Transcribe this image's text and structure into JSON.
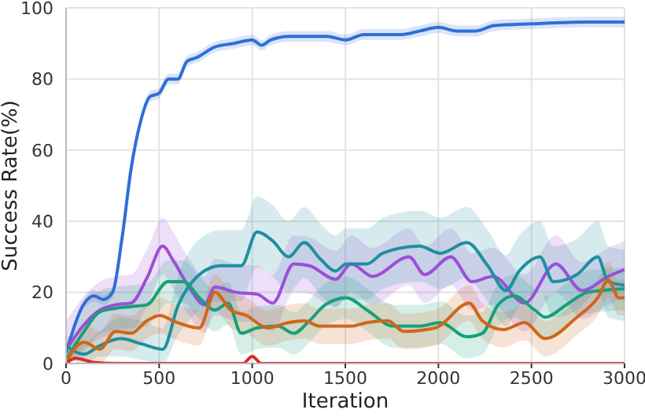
{
  "chart_data": {
    "type": "line",
    "xlabel": "Iteration",
    "ylabel": "Success Rate(%)",
    "xlim": [
      0,
      3000
    ],
    "xticks": [
      0,
      500,
      1000,
      1500,
      2000,
      2500,
      3000
    ],
    "ylim": [
      0,
      100
    ],
    "yticks": [
      0,
      20,
      40,
      60,
      80,
      100
    ],
    "grid": true,
    "legend": false,
    "marker": "none",
    "line_style": "solid",
    "series": [
      {
        "color": "#2f6fd6",
        "x": [
          0,
          100,
          150,
          200,
          250,
          300,
          350,
          400,
          450,
          500,
          550,
          600,
          650,
          700,
          800,
          900,
          1000,
          1050,
          1100,
          1200,
          1400,
          1500,
          1600,
          1800,
          1900,
          2000,
          2100,
          2200,
          2300,
          2500,
          2800,
          3000
        ],
        "values": [
          3,
          17,
          19,
          18,
          20,
          35,
          55,
          68,
          75,
          76,
          80,
          80,
          85,
          86,
          89,
          90,
          91,
          89.5,
          91,
          92,
          92,
          91,
          92.5,
          92.5,
          93.5,
          94.5,
          93.5,
          93.5,
          95,
          95.5,
          96,
          96
        ],
        "lower": [
          1.5,
          15.5,
          17.5,
          16.5,
          18.5,
          33.5,
          53.5,
          66.5,
          73.5,
          74.5,
          78.5,
          78.5,
          83.5,
          84.5,
          87.5,
          88.5,
          89.5,
          88,
          89.5,
          90.5,
          90.5,
          89.5,
          91,
          91,
          92,
          93,
          92,
          92,
          93.5,
          94,
          94.5,
          94.5
        ],
        "upper": [
          4.5,
          18.5,
          20.5,
          19.5,
          21.5,
          36.5,
          56.5,
          69.5,
          76.5,
          77.5,
          81.5,
          81.5,
          86.5,
          87.5,
          90.5,
          91.5,
          92.5,
          91,
          92.5,
          93.5,
          93.5,
          92.5,
          94,
          94,
          95,
          96,
          95,
          95,
          96.5,
          97,
          97.5,
          97.5
        ]
      },
      {
        "color": "#9b4fd6",
        "x": [
          0,
          181,
          265,
          350,
          434,
          519,
          575,
          660,
          744,
          800,
          913,
          1026,
          1110,
          1223,
          1307,
          1448,
          1532,
          1645,
          1842,
          1927,
          2067,
          2180,
          2293,
          2462,
          2631,
          2772,
          2913,
          3000
        ],
        "values": [
          4,
          15,
          16.5,
          17,
          24,
          33,
          29,
          21.5,
          16.5,
          21.5,
          20,
          19.5,
          17,
          28,
          27.5,
          23.7,
          28,
          24.5,
          30,
          25,
          30,
          23,
          24.5,
          17,
          28,
          20.5,
          24.5,
          26.4
        ],
        "lower": [
          0,
          7,
          8.5,
          9,
          16,
          25,
          21,
          13.5,
          8.5,
          13.5,
          12,
          11.5,
          9,
          20,
          19.5,
          15.7,
          20,
          16.5,
          22,
          17,
          22,
          15,
          16.5,
          9,
          20,
          12.5,
          16.5,
          18.4
        ],
        "upper": [
          12,
          23,
          24.5,
          25,
          32,
          41,
          37,
          29.5,
          24.5,
          29.5,
          28,
          27.5,
          25,
          36,
          35.5,
          31.7,
          36,
          32.5,
          38,
          33,
          38,
          31,
          32.5,
          25,
          36,
          28.5,
          32.5,
          34.4
        ]
      },
      {
        "color": "#1f8fa0",
        "x": [
          0,
          96,
          181,
          293,
          406,
          519,
          603,
          716,
          829,
          941,
          1026,
          1110,
          1195,
          1279,
          1364,
          1448,
          1504,
          1617,
          1701,
          1898,
          2011,
          2152,
          2265,
          2363,
          2434,
          2546,
          2617,
          2744,
          2856,
          2913,
          3000
        ],
        "values": [
          5,
          2.6,
          5,
          7,
          5.5,
          4,
          16.5,
          25,
          27.5,
          27.5,
          37,
          34.5,
          30,
          34,
          29.5,
          26,
          28,
          28,
          31,
          33,
          31,
          34,
          27.5,
          20.5,
          26,
          30,
          23,
          25,
          30,
          23,
          22
        ],
        "lower": [
          2,
          0,
          2,
          2,
          1,
          0,
          8,
          15,
          17.5,
          17.5,
          27,
          24.5,
          20,
          24,
          19.5,
          16,
          18,
          18,
          21,
          23,
          21,
          24,
          17.5,
          10.5,
          16,
          20,
          13,
          15,
          20,
          13,
          12
        ],
        "upper": [
          8,
          6,
          9,
          13,
          12,
          10,
          25,
          35,
          37.5,
          37.5,
          47,
          44.5,
          40,
          44,
          39.5,
          36,
          38,
          38,
          41,
          43,
          41,
          44,
          37.5,
          30.5,
          36,
          40,
          33,
          35,
          40,
          33,
          32
        ]
      },
      {
        "color": "#17a07a",
        "x": [
          0,
          96,
          181,
          265,
          350,
          434,
          547,
          631,
          716,
          800,
          871,
          941,
          1026,
          1138,
          1223,
          1307,
          1392,
          1505,
          1617,
          1758,
          1898,
          2011,
          2152,
          2236,
          2321,
          2405,
          2518,
          2574,
          2687,
          2800,
          3000
        ],
        "values": [
          1,
          9,
          14.5,
          15.5,
          16,
          16.5,
          23,
          23,
          18.5,
          15,
          17,
          8.5,
          10,
          10.5,
          8.5,
          12,
          16.5,
          18.5,
          15,
          10.5,
          10.5,
          11.5,
          7.5,
          8.5,
          16.5,
          19,
          15,
          13,
          16.5,
          20,
          21
        ],
        "lower": [
          0,
          3,
          8.5,
          9.5,
          10,
          10.5,
          17,
          17,
          12.5,
          9,
          11,
          2.5,
          4,
          4.5,
          2.5,
          6,
          10.5,
          12.5,
          9,
          4.5,
          4.5,
          5.5,
          1.5,
          2.5,
          10.5,
          13,
          9,
          7,
          10.5,
          14,
          15
        ],
        "upper": [
          2,
          15,
          20.5,
          21.5,
          22,
          22.5,
          29,
          29,
          24.5,
          21,
          23,
          14.5,
          16,
          16.5,
          14.5,
          18,
          22.5,
          24.5,
          21,
          16.5,
          16.5,
          17.5,
          13.5,
          14.5,
          22.5,
          25,
          21,
          19,
          22.5,
          26,
          27
        ]
      },
      {
        "color": "#d0661a",
        "x": [
          0,
          96,
          181,
          265,
          350,
          434,
          505,
          575,
          716,
          800,
          885,
          969,
          1082,
          1195,
          1279,
          1364,
          1532,
          1617,
          1729,
          1814,
          1983,
          2166,
          2236,
          2349,
          2462,
          2574,
          2744,
          2856,
          2913,
          2969,
          3000
        ],
        "values": [
          0.5,
          6,
          4,
          9,
          8.5,
          12,
          13.5,
          12,
          10,
          20,
          15,
          13.5,
          10,
          11.5,
          12,
          10.5,
          10.5,
          11.5,
          12,
          9,
          10,
          17,
          12,
          9.5,
          11.5,
          7,
          13,
          18.5,
          23.5,
          18.5,
          18.5
        ],
        "lower": [
          0,
          1,
          0,
          4,
          3.5,
          7,
          8.5,
          7,
          5,
          15,
          10,
          8.5,
          5,
          6.5,
          7,
          5.5,
          5.5,
          6.5,
          7,
          4,
          5,
          12,
          7,
          4.5,
          6.5,
          2,
          8,
          13.5,
          18.5,
          13.5,
          13.5
        ],
        "upper": [
          1.5,
          11,
          9,
          14,
          13.5,
          17,
          18.5,
          17,
          15,
          25,
          20,
          18.5,
          15,
          16.5,
          17,
          15.5,
          15.5,
          16.5,
          17,
          14,
          15,
          22,
          17,
          14.5,
          16.5,
          12,
          18,
          23.5,
          28.5,
          23.5,
          23.5
        ]
      },
      {
        "color": "#d62f28",
        "x": [
          0,
          50,
          150,
          300,
          950,
          1000,
          1050,
          3000
        ],
        "values": [
          0,
          1.5,
          0.3,
          0,
          0,
          2,
          0,
          0
        ]
      }
    ]
  }
}
